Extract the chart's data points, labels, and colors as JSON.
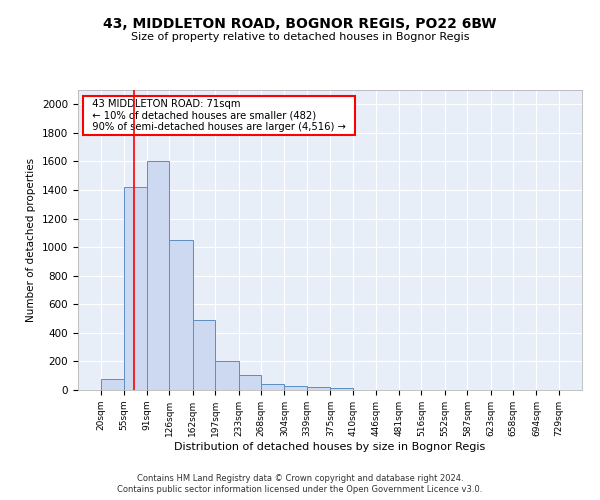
{
  "title1": "43, MIDDLETON ROAD, BOGNOR REGIS, PO22 6BW",
  "title2": "Size of property relative to detached houses in Bognor Regis",
  "xlabel": "Distribution of detached houses by size in Bognor Regis",
  "ylabel": "Number of detached properties",
  "footer1": "Contains HM Land Registry data © Crown copyright and database right 2024.",
  "footer2": "Contains public sector information licensed under the Open Government Licence v3.0.",
  "bin_edges": [
    20,
    55,
    91,
    126,
    162,
    197,
    233,
    268,
    304,
    339,
    375,
    410,
    446,
    481,
    516,
    552,
    587,
    623,
    658,
    694,
    729
  ],
  "bar_heights": [
    80,
    1420,
    1600,
    1050,
    490,
    205,
    105,
    40,
    25,
    20,
    15,
    0,
    0,
    0,
    0,
    0,
    0,
    0,
    0,
    0
  ],
  "bar_color": "#ccd9f0",
  "bar_edge_color": "#5b8ec4",
  "background_color": "#e8eef8",
  "red_line_x": 71,
  "annotation_text": "  43 MIDDLETON ROAD: 71sqm  \n  ← 10% of detached houses are smaller (482)  \n  90% of semi-detached houses are larger (4,516) →  ",
  "annotation_box_color": "white",
  "annotation_box_edge_color": "red",
  "ylim": [
    0,
    2100
  ],
  "yticks": [
    0,
    200,
    400,
    600,
    800,
    1000,
    1200,
    1400,
    1600,
    1800,
    2000
  ]
}
